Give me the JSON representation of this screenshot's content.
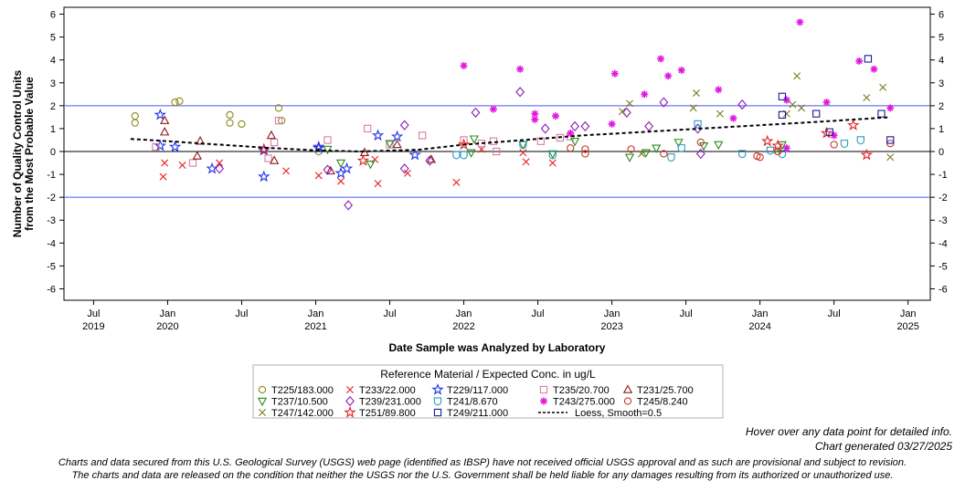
{
  "chart_data": {
    "type": "scatter",
    "ylabel": [
      "Number of Quality Control Units",
      "from the Most Probable Value"
    ],
    "xlabel": "Date Sample was Analyzed by Laboratory",
    "ylim": [
      -6.5,
      6.3
    ],
    "yticks": [
      -6,
      -5,
      -4,
      -3,
      -2,
      -1,
      0,
      1,
      2,
      3,
      4,
      5,
      6
    ],
    "xlim": [
      2019.3,
      2025.15
    ],
    "xticks": [
      {
        "x": 2019.5,
        "label": "Jul",
        "year": "2019"
      },
      {
        "x": 2020.0,
        "label": "Jan",
        "year": "2020"
      },
      {
        "x": 2020.5,
        "label": "Jul",
        "year": ""
      },
      {
        "x": 2021.0,
        "label": "Jan",
        "year": "2021"
      },
      {
        "x": 2021.5,
        "label": "Jul",
        "year": ""
      },
      {
        "x": 2022.0,
        "label": "Jan",
        "year": "2022"
      },
      {
        "x": 2022.5,
        "label": "Jul",
        "year": ""
      },
      {
        "x": 2023.0,
        "label": "Jan",
        "year": "2023"
      },
      {
        "x": 2023.5,
        "label": "Jul",
        "year": ""
      },
      {
        "x": 2024.0,
        "label": "Jan",
        "year": "2024"
      },
      {
        "x": 2024.5,
        "label": "Jul",
        "year": ""
      },
      {
        "x": 2025.0,
        "label": "Jan",
        "year": "2025"
      }
    ],
    "reference_lines": {
      "zero": 0,
      "limits": [
        -2,
        2
      ],
      "limit_color": "#4a5ae8"
    },
    "grid": false,
    "legend": {
      "title": "Reference Material / Expected Conc. in ug/L",
      "placement": "bottom"
    },
    "series": [
      {
        "name": "T225/183.000",
        "marker": "circle",
        "color": "#8b8b1a",
        "points": [
          [
            2019.78,
            1.55
          ],
          [
            2019.78,
            1.25
          ],
          [
            2020.05,
            2.15
          ],
          [
            2020.08,
            2.2
          ],
          [
            2020.42,
            1.6
          ],
          [
            2020.42,
            1.25
          ],
          [
            2020.5,
            1.2
          ],
          [
            2020.75,
            1.9
          ],
          [
            2020.77,
            1.35
          ],
          [
            2021.02,
            0.0
          ]
        ]
      },
      {
        "name": "T233/22.000",
        "marker": "x",
        "color": "#e8201e",
        "points": [
          [
            2019.97,
            -1.1
          ],
          [
            2019.98,
            -0.5
          ],
          [
            2020.1,
            -0.6
          ],
          [
            2020.35,
            -0.5
          ],
          [
            2020.8,
            -0.85
          ],
          [
            2021.02,
            -1.05
          ],
          [
            2021.17,
            -1.3
          ],
          [
            2021.4,
            -0.35
          ],
          [
            2021.42,
            -1.4
          ],
          [
            2021.62,
            -0.95
          ],
          [
            2021.95,
            -1.35
          ],
          [
            2022.12,
            0.1
          ],
          [
            2022.4,
            -0.05
          ],
          [
            2022.42,
            -0.45
          ],
          [
            2022.6,
            -0.5
          ]
        ]
      },
      {
        "name": "T229/117.000",
        "marker": "star",
        "color": "#1f33e8",
        "points": [
          [
            2019.95,
            1.6
          ],
          [
            2019.95,
            0.25
          ],
          [
            2020.05,
            0.2
          ],
          [
            2020.3,
            -0.75
          ],
          [
            2020.65,
            -1.1
          ],
          [
            2020.65,
            0.05
          ],
          [
            2021.02,
            0.15
          ],
          [
            2021.02,
            0.2
          ],
          [
            2021.17,
            -0.95
          ],
          [
            2021.21,
            -0.75
          ],
          [
            2021.42,
            0.7
          ],
          [
            2021.55,
            0.65
          ],
          [
            2021.67,
            -0.15
          ]
        ]
      },
      {
        "name": "T235/20.700",
        "marker": "square",
        "color": "#d87ca6",
        "points": [
          [
            2019.92,
            0.2
          ],
          [
            2020.17,
            -0.5
          ],
          [
            2020.68,
            -0.3
          ],
          [
            2020.72,
            0.4
          ],
          [
            2020.75,
            1.35
          ],
          [
            2021.08,
            0.5
          ],
          [
            2021.35,
            1.0
          ],
          [
            2021.5,
            0.3
          ],
          [
            2021.72,
            0.7
          ],
          [
            2022.0,
            0.5
          ],
          [
            2022.12,
            0.35
          ],
          [
            2022.2,
            0.45
          ],
          [
            2022.22,
            0.0
          ],
          [
            2022.52,
            0.45
          ],
          [
            2022.65,
            0.6
          ],
          [
            2022.72,
            0.65
          ]
        ]
      },
      {
        "name": "T231/25.700",
        "marker": "triangle-up",
        "color": "#8b1a1a",
        "points": [
          [
            2019.98,
            1.35
          ],
          [
            2019.98,
            0.85
          ],
          [
            2020.2,
            -0.2
          ],
          [
            2020.22,
            0.45
          ],
          [
            2020.7,
            0.7
          ],
          [
            2020.72,
            -0.4
          ],
          [
            2021.1,
            -0.85
          ],
          [
            2021.33,
            -0.05
          ],
          [
            2021.55,
            0.3
          ],
          [
            2021.78,
            -0.35
          ]
        ]
      },
      {
        "name": "T237/10.500",
        "marker": "triangle-down",
        "color": "#2a8a1a",
        "points": [
          [
            2021.08,
            0.1
          ],
          [
            2021.17,
            -0.5
          ],
          [
            2021.37,
            -0.55
          ],
          [
            2021.5,
            0.35
          ],
          [
            2022.05,
            -0.05
          ],
          [
            2022.07,
            0.55
          ],
          [
            2022.4,
            0.3
          ],
          [
            2022.6,
            -0.1
          ],
          [
            2022.75,
            0.45
          ],
          [
            2023.12,
            -0.25
          ],
          [
            2023.23,
            -0.05
          ],
          [
            2023.3,
            0.15
          ],
          [
            2023.45,
            0.4
          ],
          [
            2023.62,
            0.25
          ],
          [
            2023.72,
            0.3
          ],
          [
            2024.15,
            0.3
          ]
        ]
      },
      {
        "name": "T239/231.000",
        "marker": "diamond",
        "color": "#8a1ab8",
        "points": [
          [
            2020.35,
            -0.75
          ],
          [
            2021.08,
            -0.8
          ],
          [
            2021.22,
            -2.35
          ],
          [
            2021.6,
            -0.75
          ],
          [
            2021.6,
            1.15
          ],
          [
            2021.77,
            -0.4
          ],
          [
            2022.08,
            1.7
          ],
          [
            2022.38,
            2.6
          ],
          [
            2022.55,
            1.0
          ],
          [
            2022.75,
            1.1
          ],
          [
            2022.82,
            1.1
          ],
          [
            2023.1,
            1.7
          ],
          [
            2023.25,
            1.1
          ],
          [
            2023.35,
            2.15
          ],
          [
            2023.58,
            1.0
          ],
          [
            2023.6,
            -0.1
          ],
          [
            2023.88,
            2.05
          ]
        ]
      },
      {
        "name": "T241/8.670",
        "marker": "shield",
        "color": "#2a9ac0",
        "points": [
          [
            2021.95,
            -0.15
          ],
          [
            2022.0,
            -0.15
          ],
          [
            2022.4,
            0.3
          ],
          [
            2022.6,
            -0.15
          ],
          [
            2023.4,
            -0.25
          ],
          [
            2023.47,
            0.15
          ],
          [
            2023.58,
            1.2
          ],
          [
            2023.88,
            -0.1
          ],
          [
            2024.07,
            0.05
          ],
          [
            2024.15,
            -0.1
          ],
          [
            2024.57,
            0.35
          ],
          [
            2024.68,
            0.5
          ]
        ]
      },
      {
        "name": "T243/275.000",
        "marker": "asterisk",
        "color": "#e01ae0",
        "points": [
          [
            2022.0,
            3.75
          ],
          [
            2022.2,
            1.85
          ],
          [
            2022.38,
            3.6
          ],
          [
            2022.48,
            1.65
          ],
          [
            2022.48,
            1.4
          ],
          [
            2022.62,
            1.55
          ],
          [
            2022.72,
            0.8
          ],
          [
            2023.0,
            1.2
          ],
          [
            2023.02,
            3.4
          ],
          [
            2023.22,
            2.5
          ],
          [
            2023.33,
            4.05
          ],
          [
            2023.38,
            3.3
          ],
          [
            2023.47,
            3.55
          ],
          [
            2023.72,
            2.7
          ],
          [
            2023.82,
            1.45
          ],
          [
            2024.18,
            2.25
          ],
          [
            2024.18,
            0.15
          ],
          [
            2024.27,
            5.65
          ],
          [
            2024.45,
            2.15
          ],
          [
            2024.5,
            0.7
          ],
          [
            2024.67,
            3.95
          ],
          [
            2024.77,
            3.6
          ],
          [
            2024.88,
            1.9
          ]
        ]
      },
      {
        "name": "T245/8.240",
        "marker": "circle",
        "color": "#c43a2a",
        "points": [
          [
            2022.72,
            0.15
          ],
          [
            2022.82,
            -0.1
          ],
          [
            2022.82,
            0.1
          ],
          [
            2023.13,
            0.1
          ],
          [
            2023.35,
            -0.1
          ],
          [
            2023.6,
            0.4
          ],
          [
            2023.98,
            -0.2
          ],
          [
            2024.0,
            -0.25
          ],
          [
            2024.12,
            0.0
          ],
          [
            2024.5,
            0.3
          ],
          [
            2024.88,
            0.35
          ]
        ]
      },
      {
        "name": "T247/142.000",
        "marker": "x",
        "color": "#7a7a1a",
        "points": [
          [
            2023.07,
            1.75
          ],
          [
            2023.12,
            2.1
          ],
          [
            2023.2,
            -0.1
          ],
          [
            2023.57,
            2.55
          ],
          [
            2023.55,
            1.9
          ],
          [
            2023.73,
            1.65
          ],
          [
            2024.12,
            0.05
          ],
          [
            2024.18,
            1.65
          ],
          [
            2024.22,
            2.05
          ],
          [
            2024.25,
            3.3
          ],
          [
            2024.28,
            1.9
          ],
          [
            2024.72,
            2.35
          ],
          [
            2024.83,
            2.8
          ],
          [
            2024.88,
            -0.25
          ]
        ]
      },
      {
        "name": "T251/89.800",
        "marker": "star",
        "color": "#e8201e",
        "points": [
          [
            2020.65,
            0.1
          ],
          [
            2021.32,
            -0.4
          ],
          [
            2022.0,
            0.3
          ],
          [
            2024.05,
            0.45
          ],
          [
            2024.12,
            0.25
          ],
          [
            2024.45,
            0.8
          ],
          [
            2024.63,
            1.15
          ],
          [
            2024.72,
            -0.15
          ]
        ]
      },
      {
        "name": "T249/211.000",
        "marker": "square",
        "color": "#1a1a9a",
        "points": [
          [
            2024.15,
            2.4
          ],
          [
            2024.15,
            1.6
          ],
          [
            2024.38,
            1.65
          ],
          [
            2024.47,
            0.85
          ],
          [
            2024.73,
            4.05
          ],
          [
            2024.82,
            1.65
          ],
          [
            2024.88,
            0.5
          ]
        ]
      },
      {
        "name": "Loess, Smooth=0.5",
        "marker": "dashed-line",
        "color": "#000000",
        "points": [
          [
            2019.75,
            0.55
          ],
          [
            2020.0,
            0.45
          ],
          [
            2020.35,
            0.3
          ],
          [
            2020.7,
            0.15
          ],
          [
            2021.0,
            0.05
          ],
          [
            2021.3,
            0.0
          ],
          [
            2021.7,
            0.08
          ],
          [
            2022.0,
            0.3
          ],
          [
            2022.4,
            0.5
          ],
          [
            2022.8,
            0.7
          ],
          [
            2023.2,
            0.85
          ],
          [
            2023.6,
            1.0
          ],
          [
            2024.0,
            1.15
          ],
          [
            2024.4,
            1.3
          ],
          [
            2024.88,
            1.5
          ]
        ]
      }
    ]
  },
  "notes": {
    "hover": "Hover over any data point for detailed info.",
    "generated": "Chart generated 03/27/2025",
    "disclaimer1": "Charts and data secured from this U.S. Geological Survey (USGS) web page (identified as IBSP) have not received official USGS approval and as such are provisional and subject to revision.",
    "disclaimer2": "The charts and data are released on the condition that neither the USGS nor the U.S. Government shall be held liable for any damages resulting from its authorized or unauthorized use."
  }
}
